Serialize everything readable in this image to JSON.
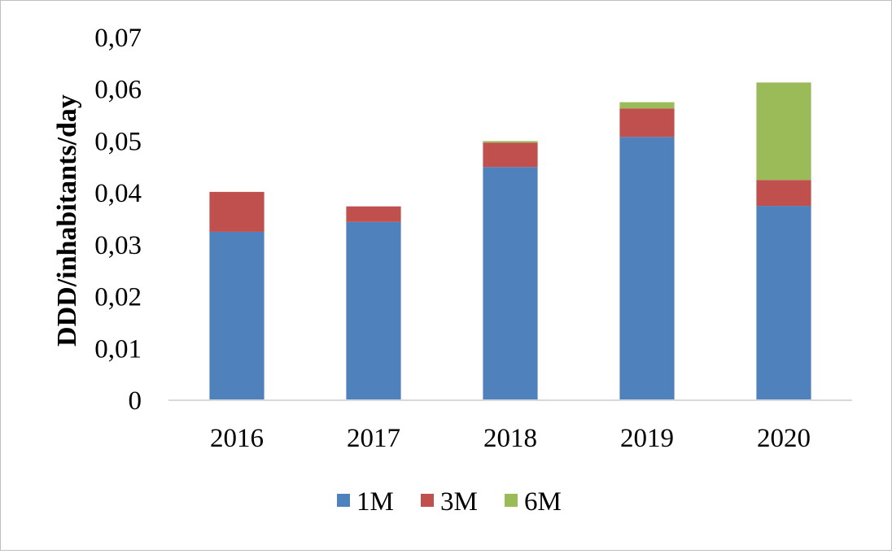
{
  "chart_data": {
    "type": "bar",
    "stacked": true,
    "title": "",
    "xlabel": "",
    "ylabel": "DDD/inhabitants/day",
    "categories": [
      "2016",
      "2017",
      "2018",
      "2019",
      "2020"
    ],
    "series": [
      {
        "name": "1M",
        "color": "#4f81bd",
        "values": [
          0.0325,
          0.0344,
          0.045,
          0.0508,
          0.0375
        ]
      },
      {
        "name": "3M",
        "color": "#c0504d",
        "values": [
          0.0077,
          0.003,
          0.0047,
          0.0055,
          0.005
        ]
      },
      {
        "name": "6M",
        "color": "#9bbb59",
        "values": [
          0.0,
          0.0,
          0.0003,
          0.0012,
          0.0188
        ]
      }
    ],
    "ylim": [
      0,
      0.07
    ],
    "yticks": [
      "0",
      "0,01",
      "0,02",
      "0,03",
      "0,04",
      "0,05",
      "0,06",
      "0,07"
    ],
    "grid": false,
    "legend_position": "bottom"
  }
}
